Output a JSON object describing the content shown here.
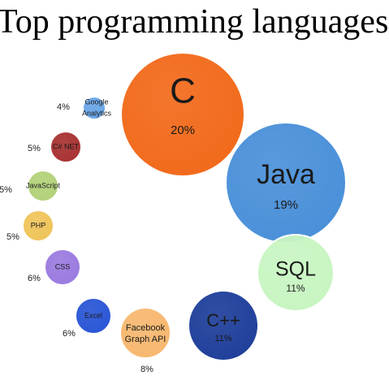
{
  "title": "Top programming languages",
  "chart_data": {
    "type": "bubble",
    "title": "Top programming languages",
    "unit": "%",
    "items": [
      {
        "name": "C",
        "value": 20,
        "label": "20%",
        "color": "#f26a1b",
        "text_color": "#1a1a1a"
      },
      {
        "name": "Java",
        "value": 19,
        "label": "19%",
        "color": "#4a90d9",
        "text_color": "#1a1a1a"
      },
      {
        "name": "SQL",
        "value": 11,
        "label": "11%",
        "color": "#c8f5c2",
        "text_color": "#1a1a1a"
      },
      {
        "name": "C++",
        "value": 11,
        "label": "11%",
        "color": "#1f3f9a",
        "text_color": "#1a1a1a"
      },
      {
        "name": "Facebook Graph API",
        "value": 8,
        "label": "8%",
        "color": "#f7b870",
        "text_color": "#1a1a1a"
      },
      {
        "name": "Excel",
        "value": 6,
        "label": "6%",
        "color": "#2a56d6",
        "text_color": "#1a1a1a"
      },
      {
        "name": "CSS",
        "value": 6,
        "label": "6%",
        "color": "#9b7be0",
        "text_color": "#1a1a1a"
      },
      {
        "name": "PHP",
        "value": 5,
        "label": "5%",
        "color": "#efc45a",
        "text_color": "#1a1a1a"
      },
      {
        "name": "JavaScript",
        "value": 5,
        "label": "5%",
        "color": "#b3d27a",
        "text_color": "#1a1a1a"
      },
      {
        "name": "C# NET",
        "value": 5,
        "label": "5%",
        "color": "#a83232",
        "text_color": "#1a1a1a"
      },
      {
        "name": "Google Analytics",
        "value": 4,
        "label": "4%",
        "color": "#6aa6e8",
        "text_color": "#1a1a1a"
      }
    ]
  }
}
